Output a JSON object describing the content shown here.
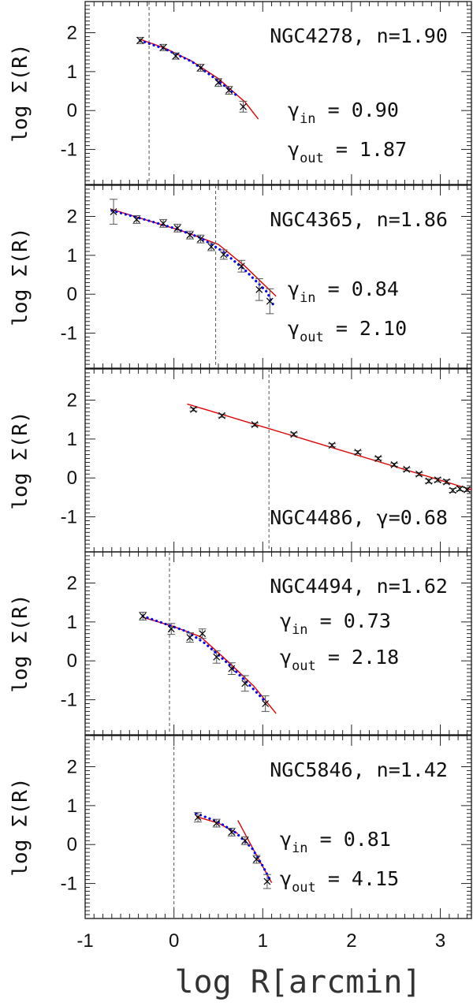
{
  "colors": {
    "data": "#000000",
    "fit_red": "#e00000",
    "fit_blue": "#0000ff",
    "vline": "#555555"
  },
  "xlabel": "log R[arcmin]",
  "x_ticks": [
    "-1",
    "0",
    "1",
    "2",
    "3"
  ],
  "y_ticks": [
    "2",
    "1",
    "0",
    "-1"
  ],
  "chart_data": [
    {
      "type": "scatter",
      "title": "NGC4278, n=1.90",
      "ylabel": "log Σ(R)",
      "gamma_lines": [
        "γin = 0.90",
        "γout = 1.87"
      ],
      "gamma_in": 0.9,
      "gamma_out": 1.87,
      "xlim": [
        -1,
        3.35
      ],
      "ylim": [
        -1.9,
        2.8
      ],
      "vline": -0.28,
      "points": [
        {
          "x": -0.38,
          "y": 1.8,
          "e": 0.08
        },
        {
          "x": -0.12,
          "y": 1.62,
          "e": 0.08
        },
        {
          "x": 0.02,
          "y": 1.4,
          "e": 0.08
        },
        {
          "x": 0.3,
          "y": 1.1,
          "e": 0.09
        },
        {
          "x": 0.5,
          "y": 0.72,
          "e": 0.1
        },
        {
          "x": 0.62,
          "y": 0.52,
          "e": 0.1
        },
        {
          "x": 0.78,
          "y": 0.1,
          "e": 0.14
        }
      ],
      "fit_red": [
        [
          -0.38,
          1.83
        ],
        [
          -0.1,
          1.6
        ],
        [
          0.2,
          1.27
        ],
        [
          0.5,
          0.82
        ],
        [
          0.8,
          0.22
        ],
        [
          0.95,
          -0.22
        ]
      ],
      "fit_blue": [
        [
          -0.38,
          1.8
        ],
        [
          -0.1,
          1.58
        ],
        [
          0.2,
          1.26
        ],
        [
          0.5,
          0.76
        ],
        [
          0.7,
          0.4
        ]
      ]
    },
    {
      "type": "scatter",
      "title": "NGC4365, n=1.86",
      "ylabel": "log Σ(R)",
      "gamma_lines": [
        "γin = 0.84",
        "γout = 2.10"
      ],
      "gamma_in": 0.84,
      "gamma_out": 2.1,
      "xlim": [
        -1,
        3.35
      ],
      "ylim": [
        -1.9,
        2.8
      ],
      "vline": 0.47,
      "points": [
        {
          "x": -0.68,
          "y": 2.12,
          "e": 0.32
        },
        {
          "x": -0.42,
          "y": 1.92,
          "e": 0.1
        },
        {
          "x": -0.12,
          "y": 1.82,
          "e": 0.1
        },
        {
          "x": 0.04,
          "y": 1.7,
          "e": 0.1
        },
        {
          "x": 0.18,
          "y": 1.52,
          "e": 0.1
        },
        {
          "x": 0.3,
          "y": 1.42,
          "e": 0.1
        },
        {
          "x": 0.42,
          "y": 1.22,
          "e": 0.1
        },
        {
          "x": 0.56,
          "y": 1.02,
          "e": 0.12
        },
        {
          "x": 0.76,
          "y": 0.72,
          "e": 0.15
        },
        {
          "x": 0.96,
          "y": 0.12,
          "e": 0.28
        },
        {
          "x": 1.08,
          "y": -0.18,
          "e": 0.32
        }
      ],
      "fit_red": [
        [
          -0.7,
          2.18
        ],
        [
          -0.3,
          1.9
        ],
        [
          0.1,
          1.62
        ],
        [
          0.5,
          1.28
        ],
        [
          0.8,
          0.72
        ],
        [
          1.15,
          -0.05
        ]
      ],
      "fit_blue": [
        [
          -0.7,
          2.15
        ],
        [
          -0.3,
          1.9
        ],
        [
          0.0,
          1.7
        ],
        [
          0.3,
          1.45
        ],
        [
          0.55,
          1.1
        ],
        [
          0.8,
          0.62
        ],
        [
          1.05,
          0.05
        ],
        [
          1.12,
          -0.28
        ]
      ]
    },
    {
      "type": "scatter",
      "title": "NGC4486, γ=0.68",
      "ylabel": "log Σ(R)",
      "gamma_lines": [],
      "gamma": 0.68,
      "xlim": [
        -1,
        3.35
      ],
      "ylim": [
        -1.9,
        2.8
      ],
      "vline": 1.07,
      "points": [
        {
          "x": 0.22,
          "y": 1.76,
          "e": 0.04
        },
        {
          "x": 0.54,
          "y": 1.6,
          "e": 0.04
        },
        {
          "x": 0.91,
          "y": 1.37,
          "e": 0.04
        },
        {
          "x": 1.35,
          "y": 1.12,
          "e": 0.04
        },
        {
          "x": 1.78,
          "y": 0.84,
          "e": 0.04
        },
        {
          "x": 2.07,
          "y": 0.66,
          "e": 0.04
        },
        {
          "x": 2.3,
          "y": 0.5,
          "e": 0.04
        },
        {
          "x": 2.48,
          "y": 0.34,
          "e": 0.04
        },
        {
          "x": 2.62,
          "y": 0.22,
          "e": 0.04
        },
        {
          "x": 2.76,
          "y": 0.1,
          "e": 0.04
        },
        {
          "x": 2.87,
          "y": -0.08,
          "e": 0.05
        },
        {
          "x": 2.97,
          "y": -0.05,
          "e": 0.05
        },
        {
          "x": 3.07,
          "y": -0.1,
          "e": 0.05
        },
        {
          "x": 3.14,
          "y": -0.32,
          "e": 0.05
        },
        {
          "x": 3.22,
          "y": -0.28,
          "e": 0.05
        },
        {
          "x": 3.3,
          "y": -0.3,
          "e": 0.05
        }
      ],
      "fit_red": [
        [
          0.15,
          1.9
        ],
        [
          3.35,
          -0.3
        ]
      ],
      "fit_blue": []
    },
    {
      "type": "scatter",
      "title": "NGC4494, n=1.62",
      "ylabel": "log Σ(R)",
      "gamma_lines": [
        "γin = 0.73",
        "γout = 2.18"
      ],
      "gamma_in": 0.73,
      "gamma_out": 2.18,
      "xlim": [
        -1,
        3.35
      ],
      "ylim": [
        -1.9,
        2.8
      ],
      "vline": -0.05,
      "points": [
        {
          "x": -0.35,
          "y": 1.15,
          "e": 0.1
        },
        {
          "x": -0.03,
          "y": 0.82,
          "e": 0.14
        },
        {
          "x": 0.18,
          "y": 0.6,
          "e": 0.12
        },
        {
          "x": 0.32,
          "y": 0.7,
          "e": 0.12
        },
        {
          "x": 0.48,
          "y": 0.1,
          "e": 0.16
        },
        {
          "x": 0.65,
          "y": -0.2,
          "e": 0.15
        },
        {
          "x": 0.8,
          "y": -0.58,
          "e": 0.2
        },
        {
          "x": 1.03,
          "y": -1.1,
          "e": 0.2
        }
      ],
      "fit_red": [
        [
          -0.35,
          1.12
        ],
        [
          0.0,
          0.88
        ],
        [
          0.3,
          0.62
        ],
        [
          0.6,
          0.0
        ],
        [
          0.9,
          -0.65
        ],
        [
          1.15,
          -1.35
        ]
      ],
      "fit_blue": [
        [
          -0.35,
          1.15
        ],
        [
          -0.1,
          0.95
        ],
        [
          0.15,
          0.75
        ],
        [
          0.35,
          0.45
        ],
        [
          0.6,
          -0.05
        ],
        [
          0.85,
          -0.62
        ],
        [
          1.03,
          -1.05
        ]
      ]
    },
    {
      "type": "scatter",
      "title": "NGC5846, n=1.42",
      "ylabel": "log Σ(R)",
      "gamma_lines": [
        "γin = 0.81",
        "γout = 4.15"
      ],
      "gamma_in": 0.81,
      "gamma_out": 4.15,
      "xlim": [
        -1,
        3.35
      ],
      "ylim": [
        -1.9,
        2.8
      ],
      "vline": 0.0,
      "points": [
        {
          "x": 0.27,
          "y": 0.7,
          "e": 0.12
        },
        {
          "x": 0.48,
          "y": 0.55,
          "e": 0.1
        },
        {
          "x": 0.65,
          "y": 0.32,
          "e": 0.1
        },
        {
          "x": 0.8,
          "y": 0.1,
          "e": 0.1
        },
        {
          "x": 0.93,
          "y": -0.38,
          "e": 0.1
        },
        {
          "x": 1.05,
          "y": -0.95,
          "e": 0.18
        }
      ],
      "fit_red": [
        [
          0.25,
          0.72
        ],
        [
          0.5,
          0.55
        ],
        [
          0.72,
          0.28
        ]
      ],
      "fit_red2": [
        [
          0.72,
          0.62
        ],
        [
          0.9,
          -0.15
        ],
        [
          1.1,
          -0.98
        ]
      ],
      "fit_blue": [
        [
          0.25,
          0.8
        ],
        [
          0.5,
          0.58
        ],
        [
          0.7,
          0.3
        ],
        [
          0.88,
          -0.1
        ],
        [
          1.0,
          -0.55
        ],
        [
          1.08,
          -0.9
        ]
      ]
    }
  ]
}
